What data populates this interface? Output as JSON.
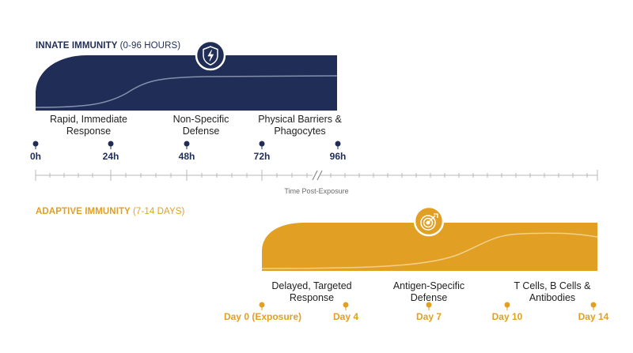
{
  "innate": {
    "title": "INNATE IMMUNITY",
    "range": "(0-96 HOURS)",
    "icon": "shield-lightning-icon",
    "color": "#1f2d57",
    "descriptions": [
      "Rapid, Immediate Response",
      "Non-Specific Defense",
      "Physical Barriers & Phagocytes"
    ],
    "ticks": [
      "0h",
      "24h",
      "48h",
      "72h",
      "96h"
    ]
  },
  "axis": {
    "label": "Time Post-Exposure",
    "break_symbol": "//"
  },
  "adaptive": {
    "title": "ADAPTIVE IMMUNITY",
    "range": "(7-14 DAYS)",
    "icon": "target-arrow-icon",
    "color": "#e1a024",
    "descriptions": [
      "Delayed, Targeted Response",
      "Antigen-Specific Defense",
      "T Cells, B Cells & Antibodies"
    ],
    "ticks": [
      "Day 0 (Exposure)",
      "Day 4",
      "Day 7",
      "Day 10",
      "Day 14"
    ]
  }
}
